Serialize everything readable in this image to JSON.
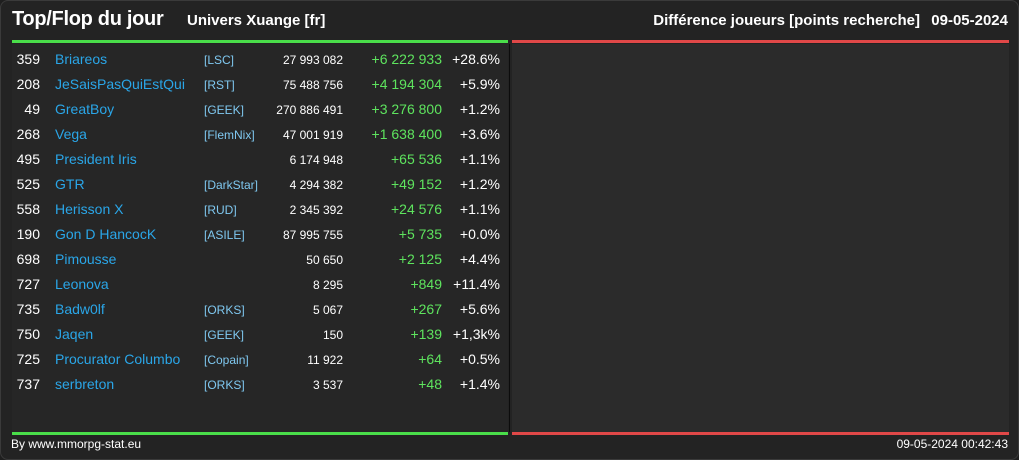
{
  "header": {
    "title": "Top/Flop du jour",
    "server": "Univers Xuange [fr]",
    "metric": "Différence joueurs [points recherche]",
    "date": "09-05-2024"
  },
  "colors": {
    "top_bar": "#4ade4a",
    "flop_bar": "#e04848",
    "name": "#2aa6e8",
    "alliance": "#7fc8f0",
    "gain": "#5ee45e"
  },
  "rows": [
    {
      "rank": "359",
      "name": "Briareos",
      "alliance": "[LSC]",
      "points": "27 993 082",
      "diff": "+6 222 933",
      "pct": "+28.6%"
    },
    {
      "rank": "208",
      "name": "JeSaisPasQuiEstQui",
      "alliance": "[RST]",
      "points": "75 488 756",
      "diff": "+4 194 304",
      "pct": "+5.9%"
    },
    {
      "rank": "49",
      "name": "GreatBoy",
      "alliance": "[GEEK]",
      "points": "270 886 491",
      "diff": "+3 276 800",
      "pct": "+1.2%"
    },
    {
      "rank": "268",
      "name": "Vega",
      "alliance": "[FlemNix]",
      "points": "47 001 919",
      "diff": "+1 638 400",
      "pct": "+3.6%"
    },
    {
      "rank": "495",
      "name": "President Iris",
      "alliance": "",
      "points": "6 174 948",
      "diff": "+65 536",
      "pct": "+1.1%"
    },
    {
      "rank": "525",
      "name": "GTR",
      "alliance": "[DarkStar]",
      "points": "4 294 382",
      "diff": "+49 152",
      "pct": "+1.2%"
    },
    {
      "rank": "558",
      "name": "Herisson X",
      "alliance": "[RUD]",
      "points": "2 345 392",
      "diff": "+24 576",
      "pct": "+1.1%"
    },
    {
      "rank": "190",
      "name": "Gon D HancocK",
      "alliance": "[ASILE]",
      "points": "87 995 755",
      "diff": "+5 735",
      "pct": "+0.0%"
    },
    {
      "rank": "698",
      "name": "Pimousse",
      "alliance": "",
      "points": "50 650",
      "diff": "+2 125",
      "pct": "+4.4%"
    },
    {
      "rank": "727",
      "name": "Leonova",
      "alliance": "",
      "points": "8 295",
      "diff": "+849",
      "pct": "+11.4%"
    },
    {
      "rank": "735",
      "name": "Badw0lf",
      "alliance": "[ORKS]",
      "points": "5 067",
      "diff": "+267",
      "pct": "+5.6%"
    },
    {
      "rank": "750",
      "name": "Jaqen",
      "alliance": "[GEEK]",
      "points": "150",
      "diff": "+139",
      "pct": "+1,3k%"
    },
    {
      "rank": "725",
      "name": "Procurator Columbo",
      "alliance": "[Copain]",
      "points": "11 922",
      "diff": "+64",
      "pct": "+0.5%"
    },
    {
      "rank": "737",
      "name": "serbreton",
      "alliance": "[ORKS]",
      "points": "3 537",
      "diff": "+48",
      "pct": "+1.4%"
    }
  ],
  "footer": {
    "credit": "By www.mmorpg-stat.eu",
    "timestamp": "09-05-2024 00:42:43"
  }
}
